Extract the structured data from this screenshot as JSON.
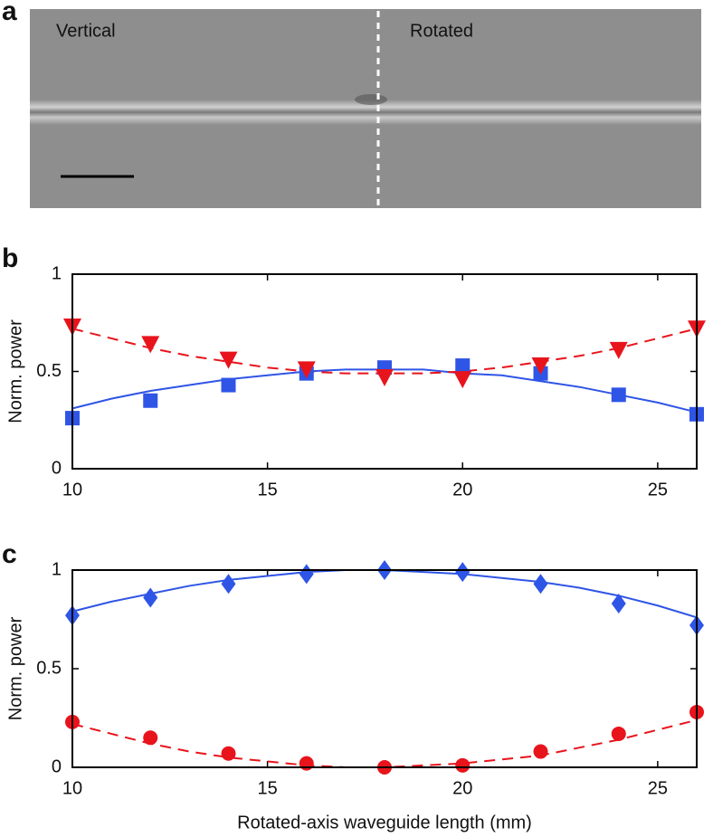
{
  "image": {
    "label": "a",
    "left_text": "Vertical",
    "right_text": "Rotated"
  },
  "chart_data": [
    {
      "type": "scatter",
      "label": "b",
      "ylabel": "Norm. power",
      "xlim": [
        10,
        26
      ],
      "xticks": [
        10,
        15,
        20,
        25
      ],
      "ylim": [
        0,
        1
      ],
      "yticks": [
        0,
        0.5,
        1
      ],
      "series": [
        {
          "color": "#2f55e6",
          "marker": "square",
          "x": [
            10,
            12,
            14,
            16,
            18,
            20,
            22,
            24,
            26
          ],
          "values": [
            0.26,
            0.35,
            0.43,
            0.49,
            0.52,
            0.53,
            0.49,
            0.38,
            0.28
          ]
        },
        {
          "color": "#e8141c",
          "marker": "triangle",
          "x": [
            10,
            12,
            14,
            16,
            18,
            20,
            22,
            24,
            26
          ],
          "values": [
            0.73,
            0.64,
            0.56,
            0.51,
            0.47,
            0.46,
            0.53,
            0.61,
            0.72
          ]
        },
        {
          "color": "#2f55e6",
          "marker": "none",
          "dashed": false,
          "x": [
            10,
            11,
            12,
            13,
            14,
            15,
            16,
            17,
            18,
            19,
            20,
            21,
            22,
            23,
            24,
            25,
            26
          ],
          "values": [
            0.31,
            0.36,
            0.4,
            0.43,
            0.46,
            0.48,
            0.5,
            0.51,
            0.51,
            0.51,
            0.49,
            0.48,
            0.45,
            0.42,
            0.38,
            0.34,
            0.29
          ]
        },
        {
          "color": "#e8141c",
          "marker": "none",
          "dashed": true,
          "x": [
            10,
            11,
            12,
            13,
            14,
            15,
            16,
            17,
            18,
            19,
            20,
            21,
            22,
            23,
            24,
            25,
            26
          ],
          "values": [
            0.72,
            0.67,
            0.62,
            0.58,
            0.55,
            0.52,
            0.5,
            0.49,
            0.49,
            0.49,
            0.5,
            0.52,
            0.55,
            0.58,
            0.62,
            0.67,
            0.72
          ]
        }
      ]
    },
    {
      "type": "scatter",
      "label": "c",
      "ylabel": "Norm. power",
      "xlabel": "Rotated-axis waveguide length (mm)",
      "xlim": [
        10,
        26
      ],
      "xticks": [
        10,
        15,
        20,
        25
      ],
      "ylim": [
        0,
        1
      ],
      "yticks": [
        0,
        0.5,
        1
      ],
      "series": [
        {
          "color": "#2f55e6",
          "marker": "diamond",
          "x": [
            10,
            12,
            14,
            16,
            18,
            20,
            22,
            24,
            26
          ],
          "values": [
            0.77,
            0.86,
            0.93,
            0.98,
            1.0,
            0.99,
            0.93,
            0.83,
            0.72
          ]
        },
        {
          "color": "#e8141c",
          "marker": "circle",
          "x": [
            10,
            12,
            14,
            16,
            18,
            20,
            22,
            24,
            26
          ],
          "values": [
            0.23,
            0.15,
            0.07,
            0.02,
            0.0,
            0.01,
            0.08,
            0.17,
            0.28
          ]
        },
        {
          "color": "#2f55e6",
          "marker": "none",
          "dashed": false,
          "x": [
            10,
            11,
            12,
            13,
            14,
            15,
            16,
            17,
            18,
            19,
            20,
            21,
            22,
            23,
            24,
            25,
            26
          ],
          "values": [
            0.79,
            0.84,
            0.88,
            0.92,
            0.95,
            0.97,
            0.99,
            1.0,
            1.0,
            0.99,
            0.98,
            0.96,
            0.94,
            0.91,
            0.87,
            0.82,
            0.76
          ]
        },
        {
          "color": "#e8141c",
          "marker": "none",
          "dashed": true,
          "x": [
            10,
            11,
            12,
            13,
            14,
            15,
            16,
            17,
            18,
            19,
            20,
            21,
            22,
            23,
            24,
            25,
            26
          ],
          "values": [
            0.22,
            0.17,
            0.12,
            0.08,
            0.05,
            0.03,
            0.01,
            0.0,
            0.0,
            0.01,
            0.02,
            0.04,
            0.06,
            0.1,
            0.14,
            0.19,
            0.24
          ]
        }
      ]
    }
  ]
}
